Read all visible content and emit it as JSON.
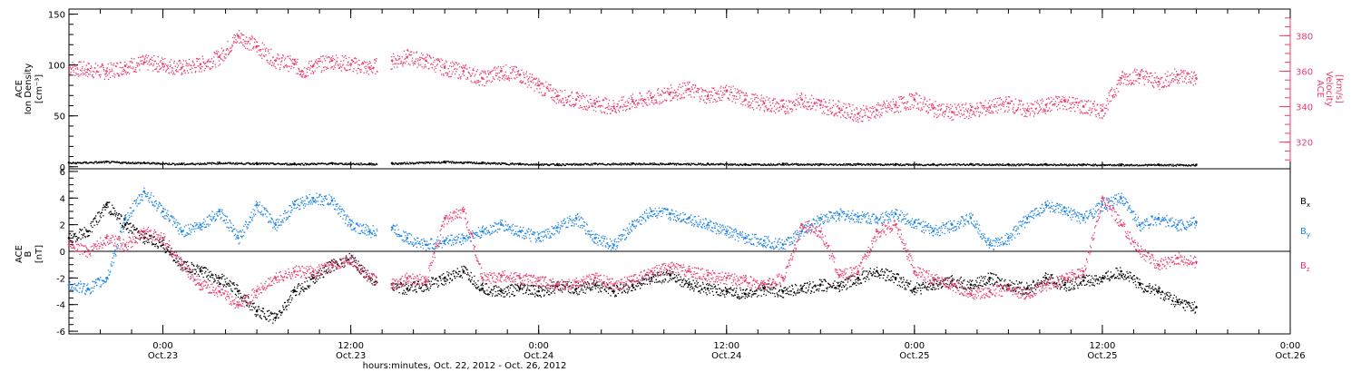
{
  "colors": {
    "axes": "#000000",
    "pink": "#ea3e6d",
    "blue": "#1f86e5",
    "black": "#000000"
  },
  "xaxis": {
    "title": "hours:minutes, Oct. 22, 2012 - Oct. 26, 2012",
    "ticks": [
      {
        "pos": 0.25,
        "time": "0:00",
        "date": "Oct.23"
      },
      {
        "pos": 0.75,
        "time": "12:00",
        "date": "Oct.23"
      },
      {
        "pos": 1.25,
        "time": "0:00",
        "date": "Oct.24"
      },
      {
        "pos": 1.75,
        "time": "12:00",
        "date": "Oct.24"
      },
      {
        "pos": 2.25,
        "time": "0:00",
        "date": "Oct.25"
      },
      {
        "pos": 2.75,
        "time": "12:00",
        "date": "Oct.25"
      },
      {
        "pos": 3.25,
        "time": "0:00",
        "date": "Oct.26"
      }
    ]
  },
  "chart_data": [
    {
      "type": "scatter",
      "panel": "plasma",
      "ylabel_left": [
        "ACE",
        "Ion Density",
        "[cm⁻³]"
      ],
      "ylabel_right": [
        "ACE",
        "Velocity",
        "[km/s]"
      ],
      "ylim_left": [
        -2,
        155
      ],
      "ylim_right": [
        305,
        395
      ],
      "yticks_left": [
        0,
        50,
        100,
        150
      ],
      "yticks_right": [
        320,
        340,
        360,
        380
      ],
      "x_range_days": [
        0,
        3.25
      ],
      "gaps": [
        [
          0.82,
          0.855
        ],
        [
          3.05,
          3.09
        ]
      ],
      "data_end": 3.0,
      "series": [
        {
          "color_key": "pink",
          "axis": "right",
          "x": [
            0,
            0.05,
            0.1,
            0.15,
            0.2,
            0.25,
            0.3,
            0.35,
            0.4,
            0.45,
            0.5,
            0.55,
            0.6,
            0.62,
            0.65,
            0.7,
            0.75,
            0.8,
            0.86,
            0.9,
            0.95,
            1.0,
            1.05,
            1.1,
            1.15,
            1.2,
            1.25,
            1.3,
            1.35,
            1.4,
            1.45,
            1.5,
            1.55,
            1.6,
            1.65,
            1.7,
            1.75,
            1.8,
            1.85,
            1.9,
            1.95,
            2.0,
            2.05,
            2.1,
            2.15,
            2.2,
            2.25,
            2.3,
            2.35,
            2.4,
            2.45,
            2.5,
            2.55,
            2.6,
            2.65,
            2.7,
            2.75,
            2.8,
            2.85,
            2.9,
            2.95,
            3.0
          ],
          "y": [
            362,
            361,
            360,
            363,
            365,
            364,
            362,
            364,
            368,
            380,
            374,
            366,
            364,
            360,
            363,
            366,
            364,
            362,
            366,
            368,
            366,
            362,
            360,
            356,
            360,
            358,
            352,
            346,
            344,
            342,
            340,
            343,
            345,
            348,
            350,
            346,
            349,
            344,
            342,
            340,
            344,
            341,
            339,
            336,
            338,
            341,
            344,
            339,
            337,
            338,
            340,
            342,
            338,
            341,
            343,
            340,
            338,
            356,
            358,
            354,
            358,
            356
          ]
        },
        {
          "color_key": "black",
          "axis": "left",
          "x": [
            0,
            0.1,
            0.2,
            0.3,
            0.4,
            0.5,
            0.6,
            0.7,
            0.8,
            0.86,
            1.0,
            1.1,
            1.2,
            1.3,
            1.4,
            1.5,
            1.6,
            1.7,
            1.8,
            1.9,
            2.0,
            2.1,
            2.2,
            2.3,
            2.4,
            2.5,
            2.6,
            2.7,
            2.8,
            2.9,
            3.0
          ],
          "y": [
            4,
            5,
            4,
            3,
            4,
            3.5,
            3,
            3.5,
            3,
            3.5,
            5,
            4,
            3,
            2.5,
            3,
            3.2,
            3,
            3,
            2.5,
            3,
            2.5,
            2.8,
            2.5,
            2.5,
            2.6,
            2.4,
            2.5,
            2.3,
            2.2,
            2.1,
            2
          ]
        }
      ]
    },
    {
      "type": "scatter",
      "panel": "magnetic",
      "ylabel_left": [
        "ACE",
        "B",
        "[nT]"
      ],
      "ylim": [
        -6.2,
        6.2
      ],
      "yticks": [
        -6,
        -4,
        -2,
        0,
        2,
        4,
        6
      ],
      "zero_line": true,
      "legend": [
        {
          "label": "Bx",
          "color_key": "black"
        },
        {
          "label": "By",
          "color_key": "blue"
        },
        {
          "label": "Bz",
          "color_key": "pink"
        }
      ],
      "series": [
        {
          "name": "Bx",
          "color_key": "black",
          "x": [
            0,
            0.05,
            0.1,
            0.15,
            0.2,
            0.25,
            0.3,
            0.35,
            0.4,
            0.45,
            0.5,
            0.55,
            0.6,
            0.65,
            0.7,
            0.75,
            0.8,
            0.86,
            0.9,
            0.95,
            1.0,
            1.05,
            1.1,
            1.15,
            1.2,
            1.25,
            1.3,
            1.35,
            1.4,
            1.45,
            1.5,
            1.55,
            1.6,
            1.65,
            1.7,
            1.75,
            1.8,
            1.85,
            1.9,
            1.95,
            2.0,
            2.05,
            2.1,
            2.15,
            2.2,
            2.25,
            2.3,
            2.35,
            2.4,
            2.45,
            2.5,
            2.55,
            2.6,
            2.65,
            2.7,
            2.75,
            2.8,
            2.85,
            2.9,
            2.95,
            3.0
          ],
          "y": [
            1,
            1.5,
            3.5,
            2,
            1,
            0.5,
            -1,
            -1.5,
            -2,
            -3,
            -4.5,
            -5,
            -3,
            -2,
            -1,
            -0.5,
            -2,
            -2.5,
            -2.8,
            -2.5,
            -2,
            -1.5,
            -2.8,
            -3,
            -2.8,
            -3,
            -2.6,
            -2.8,
            -2.5,
            -3,
            -2.5,
            -2,
            -1.8,
            -2.5,
            -2.8,
            -3,
            -3.2,
            -2.8,
            -3,
            -2.8,
            -2.5,
            -2.6,
            -2,
            -1.5,
            -2,
            -2.8,
            -2.5,
            -2.2,
            -2.5,
            -2,
            -2.5,
            -2.8,
            -2,
            -2.5,
            -2.2,
            -2,
            -1.5,
            -2.5,
            -3,
            -3.8,
            -4.2
          ]
        },
        {
          "name": "By",
          "color_key": "blue",
          "x": [
            0,
            0.05,
            0.1,
            0.15,
            0.2,
            0.25,
            0.3,
            0.35,
            0.4,
            0.45,
            0.5,
            0.55,
            0.6,
            0.65,
            0.7,
            0.75,
            0.8,
            0.86,
            0.9,
            0.95,
            1.0,
            1.05,
            1.1,
            1.15,
            1.2,
            1.25,
            1.3,
            1.35,
            1.4,
            1.45,
            1.5,
            1.55,
            1.6,
            1.65,
            1.7,
            1.75,
            1.8,
            1.85,
            1.9,
            1.95,
            2.0,
            2.05,
            2.1,
            2.15,
            2.2,
            2.25,
            2.3,
            2.35,
            2.4,
            2.45,
            2.5,
            2.55,
            2.6,
            2.65,
            2.7,
            2.75,
            2.8,
            2.85,
            2.9,
            2.95,
            3.0
          ],
          "y": [
            -2.5,
            -2.8,
            -2,
            2.5,
            4.5,
            3,
            1.5,
            2,
            3,
            1,
            3.5,
            2,
            3.5,
            4,
            3.8,
            2,
            1.5,
            1.8,
            1,
            0.5,
            0.8,
            1,
            1.5,
            2,
            1.5,
            1,
            1.8,
            2.5,
            1,
            0.5,
            2,
            3,
            2.8,
            2.5,
            2,
            1.5,
            1,
            0.8,
            0.5,
            1.5,
            2.5,
            2.8,
            2.6,
            2.5,
            2.8,
            2.2,
            1.5,
            2,
            2.5,
            0.5,
            1,
            2.5,
            3.5,
            3,
            2.5,
            3.5,
            4,
            2,
            2.5,
            2,
            2.2
          ]
        },
        {
          "name": "Bz",
          "color_key": "pink",
          "x": [
            0,
            0.05,
            0.1,
            0.15,
            0.2,
            0.25,
            0.3,
            0.35,
            0.4,
            0.45,
            0.5,
            0.55,
            0.6,
            0.65,
            0.7,
            0.75,
            0.8,
            0.86,
            0.9,
            0.95,
            1.0,
            1.05,
            1.1,
            1.15,
            1.2,
            1.25,
            1.3,
            1.35,
            1.4,
            1.45,
            1.5,
            1.55,
            1.6,
            1.65,
            1.7,
            1.75,
            1.8,
            1.85,
            1.9,
            1.95,
            2.0,
            2.05,
            2.1,
            2.15,
            2.2,
            2.25,
            2.3,
            2.35,
            2.4,
            2.45,
            2.5,
            2.55,
            2.6,
            2.65,
            2.7,
            2.75,
            2.8,
            2.85,
            2.9,
            2.95,
            3.0
          ],
          "y": [
            0.5,
            0,
            1,
            0.5,
            1.5,
            1,
            -1,
            -2.5,
            -3,
            -4,
            -3,
            -2,
            -1.5,
            -1.5,
            -1,
            -0.5,
            -2,
            -2.5,
            -2,
            -2.2,
            2.5,
            3,
            -2,
            -1.8,
            -2,
            -2.2,
            -2.5,
            -2.3,
            -2,
            -2.5,
            -2.2,
            -1.5,
            -1.2,
            -1.5,
            -1.8,
            -2,
            -2.2,
            -2.5,
            -2,
            2,
            1.5,
            -1.8,
            -1.5,
            1.5,
            2,
            -1.5,
            -2,
            -2.5,
            -3.2,
            -3,
            -2.8,
            -3.2,
            -2.5,
            -2,
            -1.5,
            4,
            2,
            0,
            -1,
            -0.5,
            -0.8
          ]
        }
      ]
    }
  ]
}
